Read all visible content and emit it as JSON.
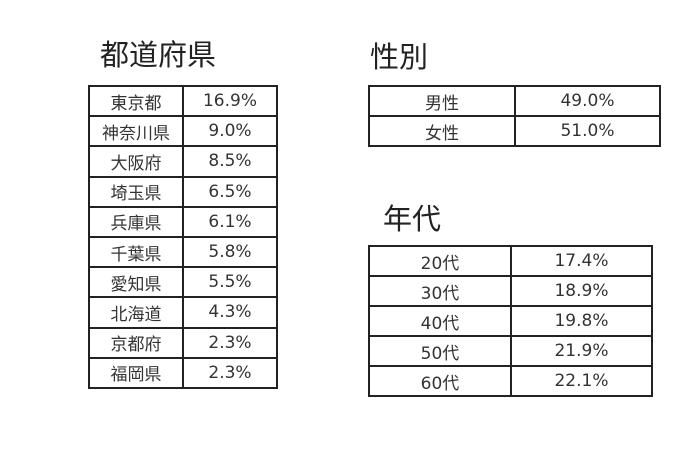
{
  "prefecture": {
    "title": "都道府県",
    "rows": [
      {
        "label": "東京都",
        "value": "16.9%"
      },
      {
        "label": "神奈川県",
        "value": "9.0%"
      },
      {
        "label": "大阪府",
        "value": "8.5%"
      },
      {
        "label": "埼玉県",
        "value": "6.5%"
      },
      {
        "label": "兵庫県",
        "value": "6.1%"
      },
      {
        "label": "千葉県",
        "value": "5.8%"
      },
      {
        "label": "愛知県",
        "value": "5.5%"
      },
      {
        "label": "北海道",
        "value": "4.3%"
      },
      {
        "label": "京都府",
        "value": "2.3%"
      },
      {
        "label": "福岡県",
        "value": "2.3%"
      }
    ]
  },
  "gender": {
    "title": "性別",
    "rows": [
      {
        "label": "男性",
        "value": "49.0%"
      },
      {
        "label": "女性",
        "value": "51.0%"
      }
    ]
  },
  "age": {
    "title": "年代",
    "rows": [
      {
        "label": "20代",
        "value": "17.4%"
      },
      {
        "label": "30代",
        "value": "18.9%"
      },
      {
        "label": "40代",
        "value": "19.8%"
      },
      {
        "label": "50代",
        "value": "21.9%"
      },
      {
        "label": "60代",
        "value": "22.1%"
      }
    ]
  }
}
